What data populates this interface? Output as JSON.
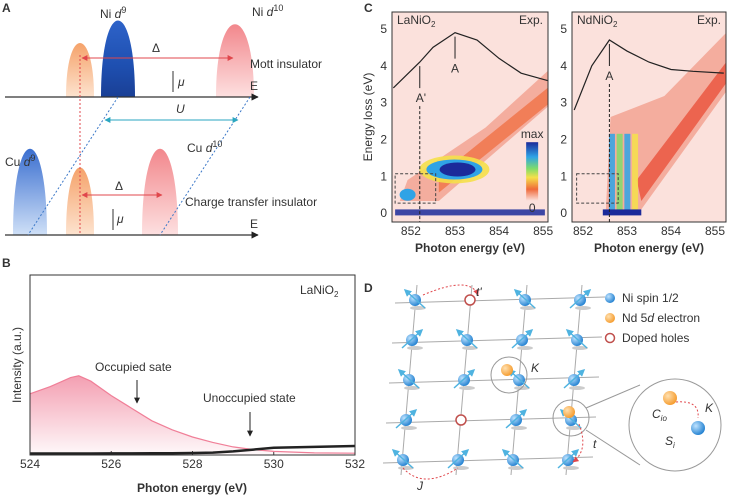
{
  "panel_labels": [
    "A",
    "B",
    "C",
    "D"
  ],
  "panel_a": {
    "ni_d9": [
      "Ni ",
      "d",
      "9"
    ],
    "ni_d10": [
      "Ni ",
      "d",
      "10"
    ],
    "delta_top": "Δ",
    "mu_top": "μ",
    "mott": "Mott insulator",
    "e_top": "E",
    "u": "U",
    "cu_d9": [
      "Cu ",
      "d",
      "9"
    ],
    "cu_d10": [
      "Cu ",
      "d",
      "10"
    ],
    "delta_bottom": "Δ",
    "mu_bottom": "μ",
    "charge_transfer": "Charge transfer insulator",
    "e_bottom": "E"
  },
  "chart_data": [
    {
      "type": "line",
      "label": [
        "LaNiO",
        "2"
      ],
      "annotations": [
        "Occupied sate",
        "Unoccupied state"
      ],
      "xlabel": "Photon energy (eV)",
      "ylabel": "Intensity (a.u.)",
      "xlim": [
        524,
        532
      ],
      "xticks": [
        524,
        526,
        528,
        530,
        532
      ],
      "ylim": [
        0,
        1
      ],
      "x": [
        524,
        524.5,
        525,
        525.2,
        525.5,
        526,
        526.5,
        527,
        527.5,
        528,
        528.5,
        529,
        529.5,
        530,
        531,
        532
      ],
      "series": [
        {
          "color": "#f07f98",
          "values": [
            0.34,
            0.38,
            0.43,
            0.44,
            0.41,
            0.33,
            0.26,
            0.19,
            0.14,
            0.1,
            0.07,
            0.045,
            0.03,
            0.02,
            0.012,
            0.01
          ]
        },
        {
          "color": "#222222",
          "values": [
            0.008,
            0.008,
            0.008,
            0.008,
            0.008,
            0.009,
            0.009,
            0.01,
            0.01,
            0.011,
            0.013,
            0.02,
            0.03,
            0.04,
            0.045,
            0.05
          ]
        }
      ]
    },
    {
      "type": "line",
      "label": [
        "LaNiO",
        "2"
      ],
      "tag": "Exp.",
      "annotations": [
        "A'",
        "A"
      ],
      "colorbar": [
        "max",
        "0"
      ],
      "xlabel": "Photon energy (eV)",
      "ylabel": "Energy loss (eV)",
      "xlim": [
        851.57,
        855.11
      ],
      "xticks": [
        852,
        853,
        854,
        855
      ],
      "ylim": [
        -0.24,
        5.46
      ],
      "yticks": [
        0,
        1,
        2,
        3,
        4,
        5
      ],
      "x": [
        851.6,
        852.2,
        852.5,
        853,
        853.5,
        854,
        854.5,
        855.1
      ],
      "series": [
        {
          "color": "#222222",
          "values": [
            3.4,
            4.1,
            4.5,
            4.9,
            4.7,
            4.2,
            3.8,
            3.6
          ]
        }
      ]
    },
    {
      "type": "line",
      "label": [
        "NdNiO",
        "2"
      ],
      "tag": "Exp.",
      "annotations": [
        "A"
      ],
      "xlabel": "Photon energy (eV)",
      "xlim": [
        851.75,
        855.25
      ],
      "xticks": [
        852,
        853,
        854,
        855
      ],
      "ylim": [
        -0.24,
        5.46
      ],
      "yticks": [
        0,
        1,
        2,
        3,
        4,
        5
      ],
      "x": [
        851.8,
        852.2,
        852.6,
        853,
        853.5,
        854,
        854.5,
        855.2
      ],
      "series": [
        {
          "color": "#222222",
          "values": [
            2.8,
            4.0,
            4.7,
            4.4,
            4.1,
            3.9,
            3.85,
            3.8
          ]
        }
      ]
    }
  ],
  "panel_d": {
    "legend": [
      "Ni spin 1/2",
      [
        "Nd 5",
        "d",
        " electron"
      ],
      "Doped holes"
    ],
    "t_prime": "t'",
    "kappa": "K",
    "j": "J",
    "t": "t",
    "c_io": [
      "C",
      "io"
    ],
    "s_i": [
      "S",
      "i"
    ],
    "kappa_zoom": "K"
  }
}
